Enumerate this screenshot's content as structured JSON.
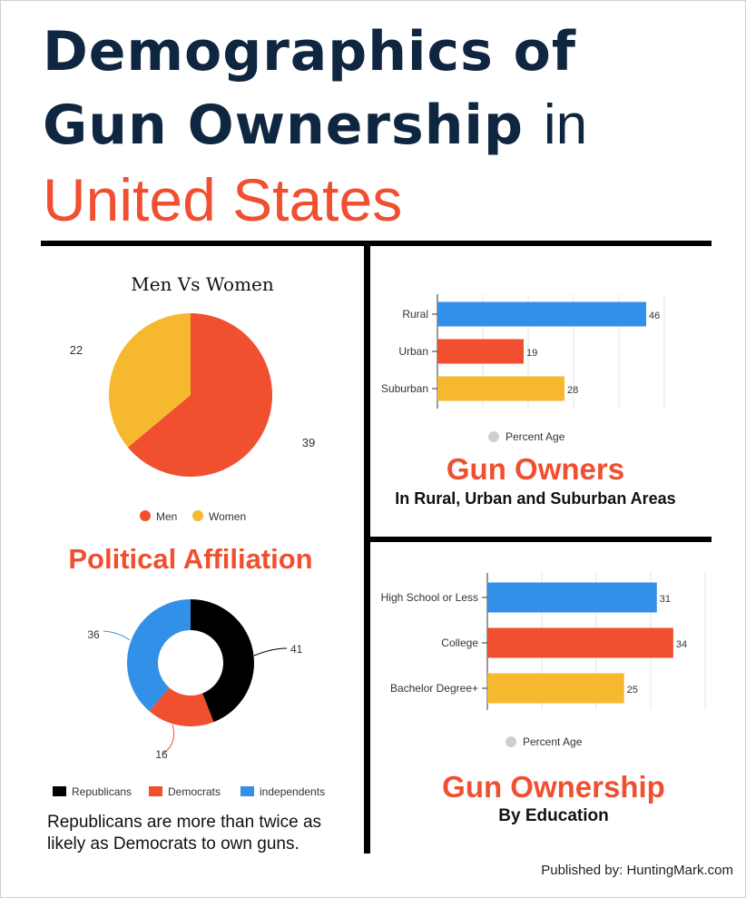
{
  "header": {
    "line1": "Demographics of",
    "line2_bold": "Gun Ownership",
    "line2_thin": "in",
    "line3": "United States"
  },
  "colors": {
    "navy": "#0f2640",
    "orange": "#f04f30",
    "blue": "#3290e8",
    "yellow": "#f5b82e",
    "black": "#000000",
    "gray": "#cfcfcf"
  },
  "political": {
    "title": "Political Affiliation",
    "note": "Republicans are more than twice as likely as Democrats to own guns."
  },
  "gun_owners_panel": {
    "title": "Gun Owners",
    "subtitle": "In Rural, Urban and Suburban Areas"
  },
  "education_panel": {
    "title": "Gun Ownership",
    "subtitle": "By Education"
  },
  "footer": {
    "published": "Published by: HuntingMark.com"
  },
  "chart_data": [
    {
      "type": "pie",
      "title": "Men Vs Women",
      "categories": [
        "Men",
        "Women"
      ],
      "values": [
        39,
        22
      ],
      "colors": [
        "#f04f30",
        "#f5b82e"
      ],
      "legend": "bottom"
    },
    {
      "type": "pie",
      "title": "",
      "donut": true,
      "categories": [
        "Republicans",
        "Democrats",
        "independents"
      ],
      "values": [
        41,
        16,
        36
      ],
      "colors": [
        "#000000",
        "#f04f30",
        "#3290e8"
      ],
      "legend": "bottom"
    },
    {
      "type": "bar",
      "orientation": "horizontal",
      "categories": [
        "Rural",
        "Urban",
        "Suburban"
      ],
      "values": [
        46,
        19,
        28
      ],
      "colors": [
        "#3290e8",
        "#f04f30",
        "#f5b82e"
      ],
      "legend": [
        "Percent Age"
      ],
      "xlim": [
        0,
        50
      ],
      "grid": true
    },
    {
      "type": "bar",
      "orientation": "horizontal",
      "categories": [
        "High School or Less",
        "College",
        "Bachelor Degree+"
      ],
      "values": [
        31,
        34,
        25
      ],
      "colors": [
        "#3290e8",
        "#f04f30",
        "#f5b82e"
      ],
      "legend": [
        "Percent Age"
      ],
      "xlim": [
        0,
        40
      ],
      "grid": true
    }
  ]
}
